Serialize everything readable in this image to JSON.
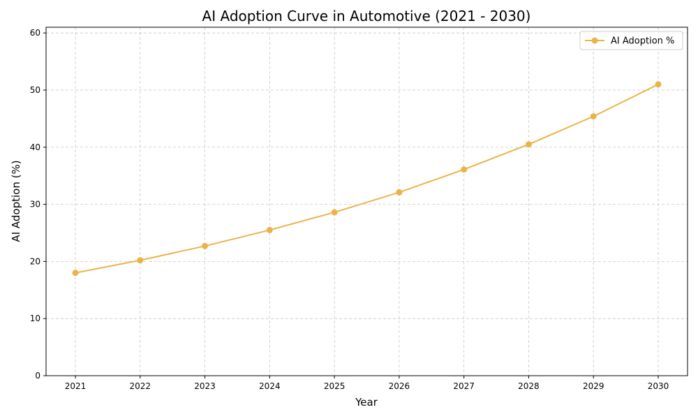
{
  "chart_data": {
    "type": "line",
    "title": "AI Adoption Curve in Automotive (2021 - 2030)",
    "xlabel": "Year",
    "ylabel": "AI Adoption (%)",
    "x": [
      "2021",
      "2022",
      "2023",
      "2024",
      "2025",
      "2026",
      "2027",
      "2028",
      "2029",
      "2030"
    ],
    "series": [
      {
        "name": "AI Adoption %",
        "color": "#ebb34a",
        "marker": "circle",
        "values": [
          18.0,
          20.2,
          22.7,
          25.5,
          28.6,
          32.1,
          36.1,
          40.5,
          45.4,
          51.0
        ]
      }
    ],
    "ylim": [
      0,
      61
    ],
    "yticks": [
      0,
      10,
      20,
      30,
      40,
      50,
      60
    ],
    "grid": true,
    "grid_style": "dashed",
    "legend_position": "top-right"
  }
}
